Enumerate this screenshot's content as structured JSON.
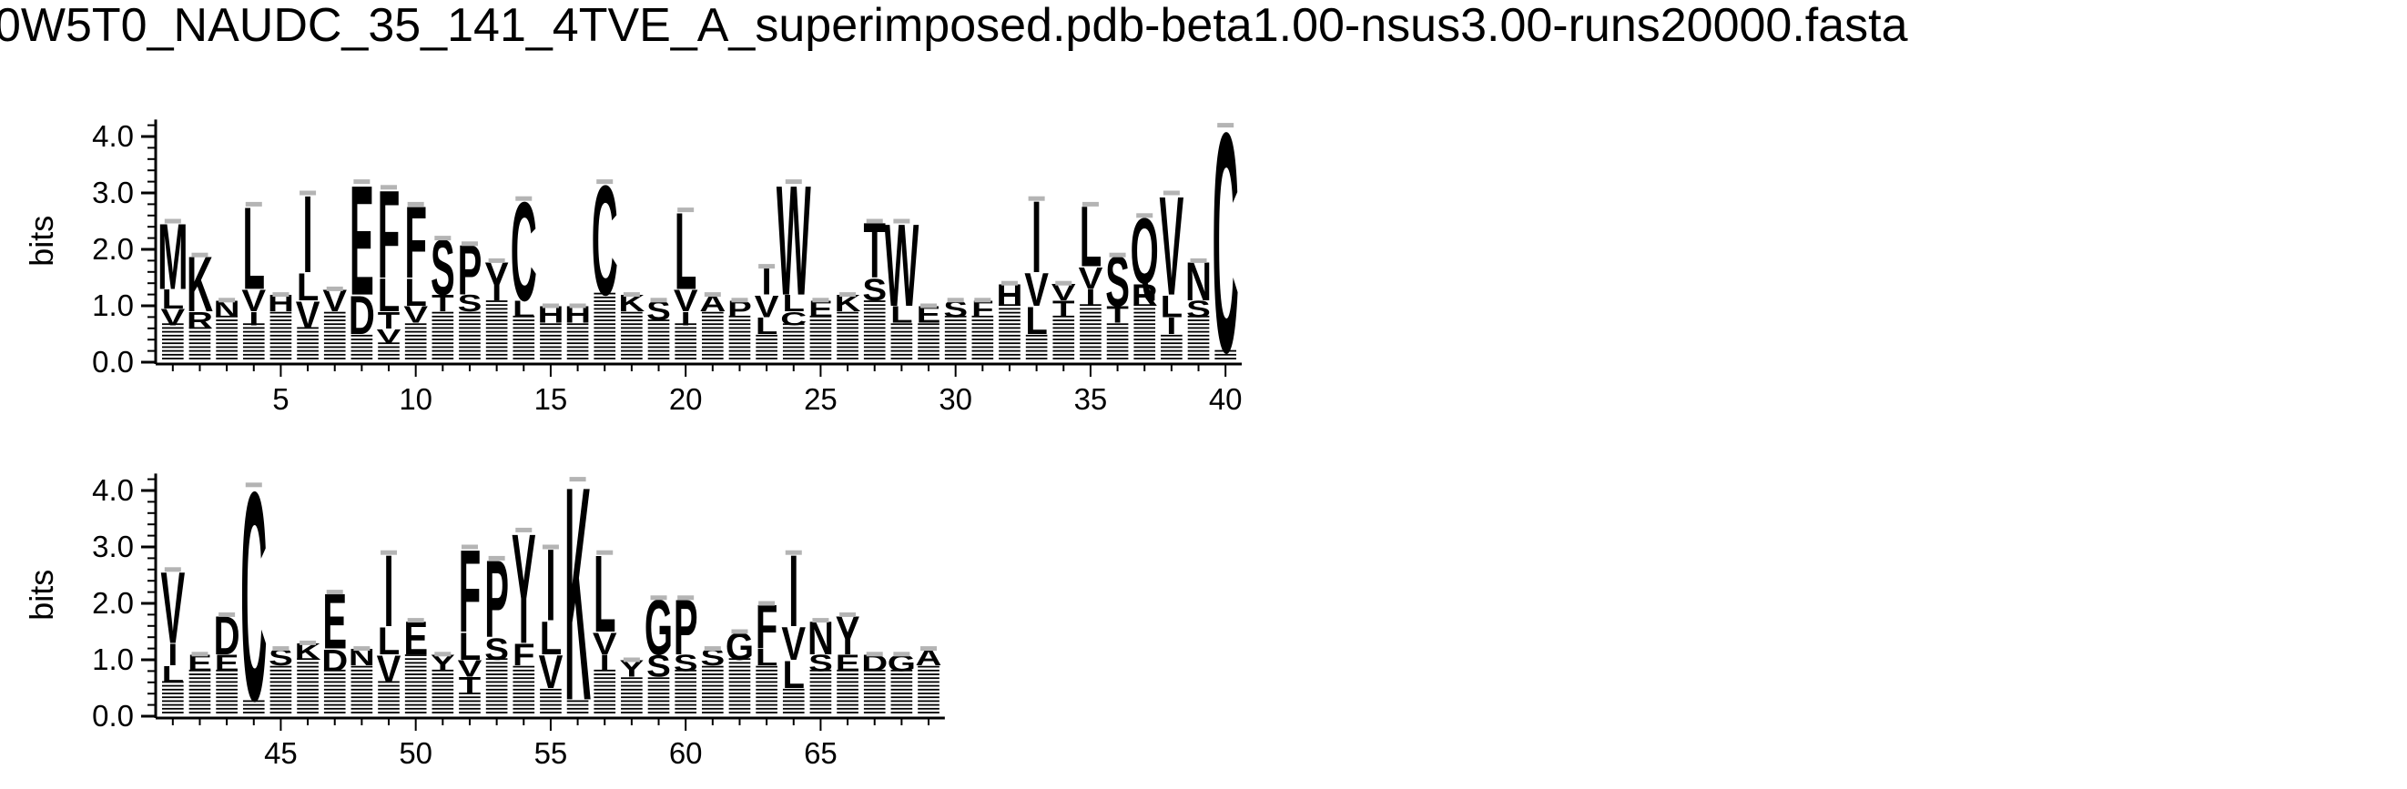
{
  "title": "0W5T0_NAUDC_35_141_4TVE_A_superimposed.pdb-beta1.00-nsus3.00-runs20000.fasta",
  "chart_data": {
    "type": "sequence-logo",
    "ylabel": "bits",
    "ylim": [
      0,
      4.3
    ],
    "yticks": [
      "0.0",
      "1.0",
      "2.0",
      "3.0",
      "4.0"
    ],
    "rows": [
      {
        "x_start": 1,
        "x_end": 40,
        "xticks": [
          "5",
          "10",
          "15",
          "20",
          "25",
          "30",
          "35",
          "40"
        ]
      },
      {
        "x_start": 41,
        "x_end": 69,
        "xticks": [
          "45",
          "50",
          "55",
          "60",
          "65"
        ]
      }
    ],
    "positions": [
      {
        "pos": 1,
        "total": 2.5,
        "letters": [
          [
            "M",
            1.2
          ],
          [
            "L",
            0.35
          ],
          [
            "V",
            0.3
          ]
        ]
      },
      {
        "pos": 2,
        "total": 1.9,
        "letters": [
          [
            "K",
            1.0
          ],
          [
            "R",
            0.3
          ]
        ]
      },
      {
        "pos": 3,
        "total": 1.1,
        "letters": [
          [
            "N",
            0.3
          ]
        ]
      },
      {
        "pos": 4,
        "total": 2.8,
        "letters": [
          [
            "L",
            1.5
          ],
          [
            "V",
            0.4
          ],
          [
            "I",
            0.25
          ]
        ]
      },
      {
        "pos": 5,
        "total": 1.2,
        "letters": [
          [
            "H",
            0.3
          ]
        ]
      },
      {
        "pos": 6,
        "total": 3.0,
        "letters": [
          [
            "I",
            1.4
          ],
          [
            "V",
            0.5
          ],
          [
            "L",
            0.5
          ]
        ]
      },
      {
        "pos": 7,
        "total": 1.3,
        "letters": [
          [
            "V",
            0.4
          ]
        ]
      },
      {
        "pos": 8,
        "total": 3.2,
        "letters": [
          [
            "E",
            2.0
          ],
          [
            "D",
            0.7
          ]
        ]
      },
      {
        "pos": 9,
        "total": 3.1,
        "letters": [
          [
            "F",
            1.6
          ],
          [
            "L",
            0.6
          ],
          [
            "T",
            0.3
          ],
          [
            "V",
            0.25
          ]
        ]
      },
      {
        "pos": 10,
        "total": 2.8,
        "letters": [
          [
            "F",
            1.3
          ],
          [
            "L",
            0.5
          ],
          [
            "V",
            0.3
          ]
        ]
      },
      {
        "pos": 11,
        "total": 2.2,
        "letters": [
          [
            "S",
            1.0
          ],
          [
            "T",
            0.3
          ]
        ]
      },
      {
        "pos": 12,
        "total": 2.1,
        "letters": [
          [
            "P",
            0.9
          ],
          [
            "S",
            0.3
          ]
        ]
      },
      {
        "pos": 13,
        "total": 1.8,
        "letters": [
          [
            "Y",
            0.7
          ]
        ]
      },
      {
        "pos": 14,
        "total": 2.9,
        "letters": [
          [
            "C",
            1.8
          ],
          [
            "L",
            0.3
          ]
        ]
      },
      {
        "pos": 15,
        "total": 1.0,
        "letters": [
          [
            "H",
            0.3
          ]
        ]
      },
      {
        "pos": 16,
        "total": 1.0,
        "letters": [
          [
            "H",
            0.3
          ]
        ]
      },
      {
        "pos": 17,
        "total": 3.2,
        "letters": [
          [
            "C",
            2.0
          ]
        ]
      },
      {
        "pos": 18,
        "total": 1.2,
        "letters": [
          [
            "K",
            0.3
          ]
        ]
      },
      {
        "pos": 19,
        "total": 1.1,
        "letters": [
          [
            "S",
            0.35
          ]
        ]
      },
      {
        "pos": 20,
        "total": 2.7,
        "letters": [
          [
            "L",
            1.4
          ],
          [
            "V",
            0.4
          ],
          [
            "I",
            0.25
          ]
        ]
      },
      {
        "pos": 21,
        "total": 1.2,
        "letters": [
          [
            "A",
            0.3
          ]
        ]
      },
      {
        "pos": 22,
        "total": 1.1,
        "letters": [
          [
            "P",
            0.3
          ]
        ]
      },
      {
        "pos": 23,
        "total": 1.7,
        "letters": [
          [
            "I",
            0.5
          ],
          [
            "V",
            0.4
          ],
          [
            "L",
            0.3
          ]
        ]
      },
      {
        "pos": 24,
        "total": 3.2,
        "letters": [
          [
            "W",
            2.0
          ],
          [
            "L",
            0.3
          ],
          [
            "C",
            0.25
          ]
        ]
      },
      {
        "pos": 25,
        "total": 1.1,
        "letters": [
          [
            "E",
            0.3
          ]
        ]
      },
      {
        "pos": 26,
        "total": 1.2,
        "letters": [
          [
            "K",
            0.3
          ]
        ]
      },
      {
        "pos": 27,
        "total": 2.5,
        "letters": [
          [
            "T",
            1.0
          ],
          [
            "S",
            0.4
          ]
        ]
      },
      {
        "pos": 28,
        "total": 2.5,
        "letters": [
          [
            "W",
            1.5
          ],
          [
            "L",
            0.3
          ]
        ]
      },
      {
        "pos": 29,
        "total": 1.0,
        "letters": [
          [
            "E",
            0.3
          ]
        ]
      },
      {
        "pos": 30,
        "total": 1.1,
        "letters": [
          [
            "S",
            0.3
          ]
        ]
      },
      {
        "pos": 31,
        "total": 1.1,
        "letters": [
          [
            "F",
            0.3
          ]
        ]
      },
      {
        "pos": 32,
        "total": 1.4,
        "letters": [
          [
            "H",
            0.4
          ]
        ]
      },
      {
        "pos": 33,
        "total": 2.9,
        "letters": [
          [
            "I",
            1.3
          ],
          [
            "V",
            0.6
          ],
          [
            "L",
            0.5
          ]
        ]
      },
      {
        "pos": 34,
        "total": 1.4,
        "letters": [
          [
            "T",
            0.3
          ],
          [
            "V",
            0.3
          ]
        ]
      },
      {
        "pos": 35,
        "total": 2.8,
        "letters": [
          [
            "L",
            1.1
          ],
          [
            "V",
            0.4
          ],
          [
            "I",
            0.3
          ]
        ]
      },
      {
        "pos": 36,
        "total": 1.9,
        "letters": [
          [
            "S",
            0.9
          ],
          [
            "T",
            0.3
          ]
        ]
      },
      {
        "pos": 37,
        "total": 2.6,
        "letters": [
          [
            "Q",
            1.2
          ],
          [
            "R",
            0.4
          ]
        ]
      },
      {
        "pos": 38,
        "total": 3.0,
        "letters": [
          [
            "V",
            1.8
          ],
          [
            "I",
            0.3
          ],
          [
            "L",
            0.4
          ]
        ]
      },
      {
        "pos": 39,
        "total": 1.8,
        "letters": [
          [
            "N",
            0.7
          ],
          [
            "S",
            0.3
          ]
        ]
      },
      {
        "pos": 40,
        "total": 4.2,
        "letters": [
          [
            "C",
            4.0
          ]
        ]
      },
      {
        "pos": 41,
        "total": 2.6,
        "letters": [
          [
            "V",
            1.3
          ],
          [
            "I",
            0.4
          ],
          [
            "L",
            0.3
          ]
        ]
      },
      {
        "pos": 42,
        "total": 1.1,
        "letters": [
          [
            "E",
            0.3
          ]
        ]
      },
      {
        "pos": 43,
        "total": 1.8,
        "letters": [
          [
            "D",
            0.7
          ],
          [
            "E",
            0.3
          ]
        ]
      },
      {
        "pos": 44,
        "total": 4.1,
        "letters": [
          [
            "C",
            3.8
          ]
        ]
      },
      {
        "pos": 45,
        "total": 1.2,
        "letters": [
          [
            "S",
            0.3
          ]
        ]
      },
      {
        "pos": 46,
        "total": 1.3,
        "letters": [
          [
            "K",
            0.3
          ]
        ]
      },
      {
        "pos": 47,
        "total": 2.2,
        "letters": [
          [
            "E",
            1.0
          ],
          [
            "D",
            0.4
          ]
        ]
      },
      {
        "pos": 48,
        "total": 1.2,
        "letters": [
          [
            "N",
            0.3
          ]
        ]
      },
      {
        "pos": 49,
        "total": 2.9,
        "letters": [
          [
            "I",
            1.3
          ],
          [
            "V",
            0.5
          ],
          [
            "L",
            0.5
          ]
        ]
      },
      {
        "pos": 50,
        "total": 1.7,
        "letters": [
          [
            "E",
            0.6
          ]
        ]
      },
      {
        "pos": 51,
        "total": 1.1,
        "letters": [
          [
            "Y",
            0.3
          ]
        ]
      },
      {
        "pos": 52,
        "total": 3.0,
        "letters": [
          [
            "F",
            1.5
          ],
          [
            "L",
            0.5
          ],
          [
            "T",
            0.3
          ],
          [
            "V",
            0.3
          ]
        ]
      },
      {
        "pos": 53,
        "total": 2.8,
        "letters": [
          [
            "P",
            1.4
          ],
          [
            "S",
            0.4
          ]
        ]
      },
      {
        "pos": 54,
        "total": 3.3,
        "letters": [
          [
            "Y",
            2.0
          ],
          [
            "F",
            0.4
          ]
        ]
      },
      {
        "pos": 55,
        "total": 3.0,
        "letters": [
          [
            "I",
            1.3
          ],
          [
            "V",
            0.6
          ],
          [
            "L",
            0.6
          ]
        ]
      },
      {
        "pos": 56,
        "total": 4.2,
        "letters": [
          [
            "K",
            3.9
          ]
        ]
      },
      {
        "pos": 57,
        "total": 2.9,
        "letters": [
          [
            "L",
            1.4
          ],
          [
            "V",
            0.4
          ],
          [
            "I",
            0.3
          ]
        ]
      },
      {
        "pos": 58,
        "total": 1.0,
        "letters": [
          [
            "Y",
            0.3
          ]
        ]
      },
      {
        "pos": 59,
        "total": 2.1,
        "letters": [
          [
            "G",
            1.0
          ],
          [
            "S",
            0.4
          ]
        ]
      },
      {
        "pos": 60,
        "total": 2.1,
        "letters": [
          [
            "P",
            1.0
          ],
          [
            "S",
            0.3
          ]
        ]
      },
      {
        "pos": 61,
        "total": 1.2,
        "letters": [
          [
            "S",
            0.3
          ]
        ]
      },
      {
        "pos": 62,
        "total": 1.5,
        "letters": [
          [
            "G",
            0.5
          ]
        ]
      },
      {
        "pos": 63,
        "total": 2.0,
        "letters": [
          [
            "F",
            0.8
          ],
          [
            "L",
            0.3
          ]
        ]
      },
      {
        "pos": 64,
        "total": 2.9,
        "letters": [
          [
            "I",
            1.3
          ],
          [
            "V",
            0.6
          ],
          [
            "L",
            0.5
          ]
        ]
      },
      {
        "pos": 65,
        "total": 1.7,
        "letters": [
          [
            "N",
            0.6
          ],
          [
            "S",
            0.3
          ]
        ]
      },
      {
        "pos": 66,
        "total": 1.8,
        "letters": [
          [
            "Y",
            0.7
          ],
          [
            "E",
            0.3
          ]
        ]
      },
      {
        "pos": 67,
        "total": 1.1,
        "letters": [
          [
            "D",
            0.3
          ]
        ]
      },
      {
        "pos": 68,
        "total": 1.1,
        "letters": [
          [
            "G",
            0.3
          ]
        ]
      },
      {
        "pos": 69,
        "total": 1.2,
        "letters": [
          [
            "A",
            0.3
          ]
        ]
      }
    ]
  }
}
